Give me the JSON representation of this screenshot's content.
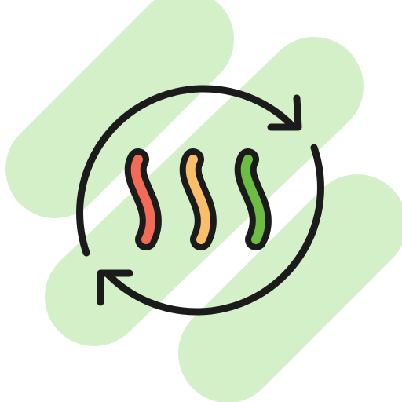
{
  "icon": {
    "name": "heat-cycle-icon",
    "colors": {
      "background_blob": "#d4f0c8",
      "outline": "#1b1b1b",
      "wave_red": "#f26b57",
      "wave_orange": "#f8be6a",
      "wave_green": "#6dbd45"
    }
  }
}
